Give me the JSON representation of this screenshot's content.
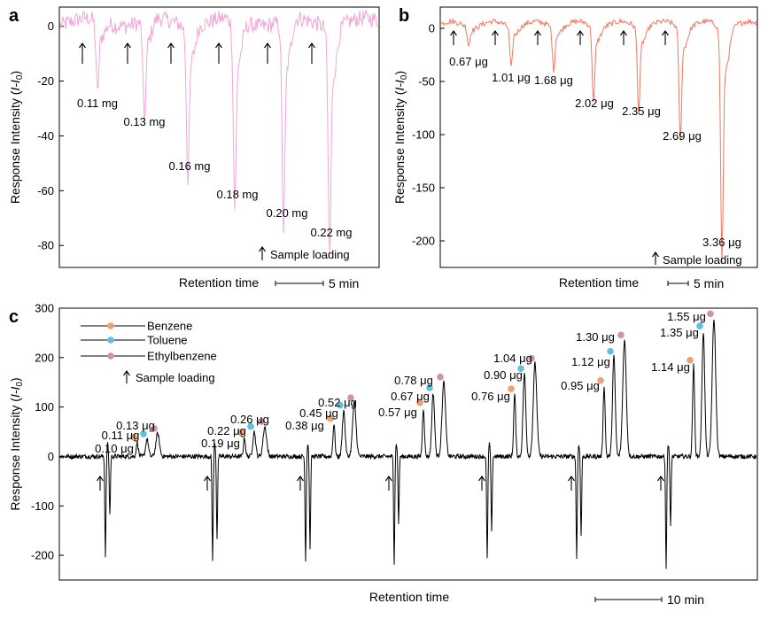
{
  "panels": [
    {
      "letter": "a",
      "ylabel_prefix": "Response Intensity (",
      "ylabel_italic": "I-I",
      "ylabel_sub": "0",
      "ylabel_suffix": ")",
      "xlabel": "Retention time",
      "scale_label": "5 min",
      "loading_legend": "Sample loading"
    },
    {
      "letter": "b",
      "ylabel_prefix": "Response Intensity (",
      "ylabel_italic": "I-I",
      "ylabel_sub": "0",
      "ylabel_suffix": ")",
      "xlabel": "Retention time",
      "scale_label": "5 min",
      "loading_legend": "Sample loading"
    },
    {
      "letter": "c",
      "ylabel_prefix": "Response Intensity (",
      "ylabel_italic": "I-I",
      "ylabel_sub": "0",
      "ylabel_suffix": ")",
      "xlabel": "Retention time",
      "scale_label": "10 min",
      "loading_legend": "Sample loading"
    }
  ],
  "chart_data": [
    {
      "type": "line",
      "panel": "a",
      "color": "#f2a6d8",
      "ylim": [
        -88,
        7
      ],
      "yticks": [
        0,
        -20,
        -40,
        -60,
        -80
      ],
      "x_unit": "min",
      "x_extent_min": 40,
      "loading_x": [
        4.5,
        13.5,
        22.5,
        31,
        40,
        48.5
      ],
      "peaks": [
        {
          "x": 7.5,
          "depth": -23,
          "label": "0.11 mg"
        },
        {
          "x": 16.5,
          "depth": -32,
          "label": "0.13 mg"
        },
        {
          "x": 25.5,
          "depth": -48,
          "label": "0.16 mg"
        },
        {
          "x": 34,
          "depth": -59,
          "label": "0.18 mg"
        },
        {
          "x": 43,
          "depth": -66,
          "label": "0.20 mg"
        },
        {
          "x": 52,
          "depth": -72,
          "label": "0.22 mg"
        }
      ]
    },
    {
      "type": "line",
      "panel": "b",
      "color": "#f07860",
      "ylim": [
        -225,
        20
      ],
      "yticks": [
        0,
        -50,
        -100,
        -150,
        -200
      ],
      "x_unit": "min",
      "loading_x": [
        3,
        12.5,
        21,
        30,
        39,
        47.5
      ],
      "peaks": [
        {
          "x": 5.5,
          "depth": -16,
          "label": "0.67 μg"
        },
        {
          "x": 14.5,
          "depth": -35,
          "label": "1.01 μg"
        },
        {
          "x": 23,
          "depth": -37,
          "label": "1.68 μg"
        },
        {
          "x": 32,
          "depth": -65,
          "label": "2.02 μg"
        },
        {
          "x": 41,
          "depth": -72,
          "label": "2.35 μg"
        },
        {
          "x": 49.5,
          "depth": -97,
          "label": "2.69 μg"
        },
        {
          "x": 58,
          "depth": -197,
          "label": "3.36 μg"
        }
      ]
    },
    {
      "type": "line",
      "panel": "c",
      "color": "#000000",
      "ylim": [
        -250,
        300
      ],
      "yticks": [
        300,
        200,
        100,
        0,
        -100,
        -200
      ],
      "x_unit": "min",
      "legend": [
        "Benzene",
        "Toluene",
        "Ethylbenzene"
      ],
      "series_colors": [
        "#f0a070",
        "#60c0e0",
        "#d090b0"
      ],
      "cycles": [
        {
          "load_x": 5,
          "neg1": -200,
          "neg2": -118,
          "peaks": [
            {
              "name": "Benzene",
              "value": 28,
              "label": "0.10 μg"
            },
            {
              "name": "Toluene",
              "value": 35,
              "label": "0.11 μg"
            },
            {
              "name": "Ethylbenzene",
              "value": 46,
              "label": "0.13 μg"
            }
          ]
        },
        {
          "load_x": 16,
          "neg1": -208,
          "neg2": -165,
          "peaks": [
            {
              "name": "Benzene",
              "value": 38,
              "label": "0.19 μg"
            },
            {
              "name": "Toluene",
              "value": 50,
              "label": "0.22 μg"
            },
            {
              "name": "Ethylbenzene",
              "value": 60,
              "label": "0.26 μg"
            }
          ]
        },
        {
          "load_x": 27,
          "neg1": -210,
          "neg2": -185,
          "peaks": [
            {
              "name": "Benzene",
              "value": 66,
              "label": "0.38 μg"
            },
            {
              "name": "Toluene",
              "value": 93,
              "label": "0.45 μg"
            },
            {
              "name": "Ethylbenzene",
              "value": 108,
              "label": "0.52 μg"
            }
          ]
        },
        {
          "load_x": 38,
          "neg1": -215,
          "neg2": -135,
          "peaks": [
            {
              "name": "Benzene",
              "value": 98,
              "label": "0.57 μg"
            },
            {
              "name": "Toluene",
              "value": 128,
              "label": "0.67 μg"
            },
            {
              "name": "Ethylbenzene",
              "value": 150,
              "label": "0.78 μg"
            }
          ]
        },
        {
          "load_x": 49,
          "neg1": -210,
          "neg2": -155,
          "peaks": [
            {
              "name": "Benzene",
              "value": 126,
              "label": "0.76 μg"
            },
            {
              "name": "Toluene",
              "value": 167,
              "label": "0.90 μg"
            },
            {
              "name": "Ethylbenzene",
              "value": 188,
              "label": "1.04 μg"
            }
          ]
        },
        {
          "load_x": 60,
          "neg1": -205,
          "neg2": -160,
          "peaks": [
            {
              "name": "Benzene",
              "value": 143,
              "label": "0.95 μg"
            },
            {
              "name": "Toluene",
              "value": 202,
              "label": "1.12 μg"
            },
            {
              "name": "Ethylbenzene",
              "value": 235,
              "label": "1.30 μg"
            }
          ]
        },
        {
          "load_x": 71,
          "neg1": -225,
          "neg2": -145,
          "peaks": [
            {
              "name": "Benzene",
              "value": 184,
              "label": "1.14 μg"
            },
            {
              "name": "Toluene",
              "value": 253,
              "label": "1.35 μg"
            },
            {
              "name": "Ethylbenzene",
              "value": 278,
              "label": "1.55 μg"
            }
          ]
        }
      ]
    }
  ]
}
